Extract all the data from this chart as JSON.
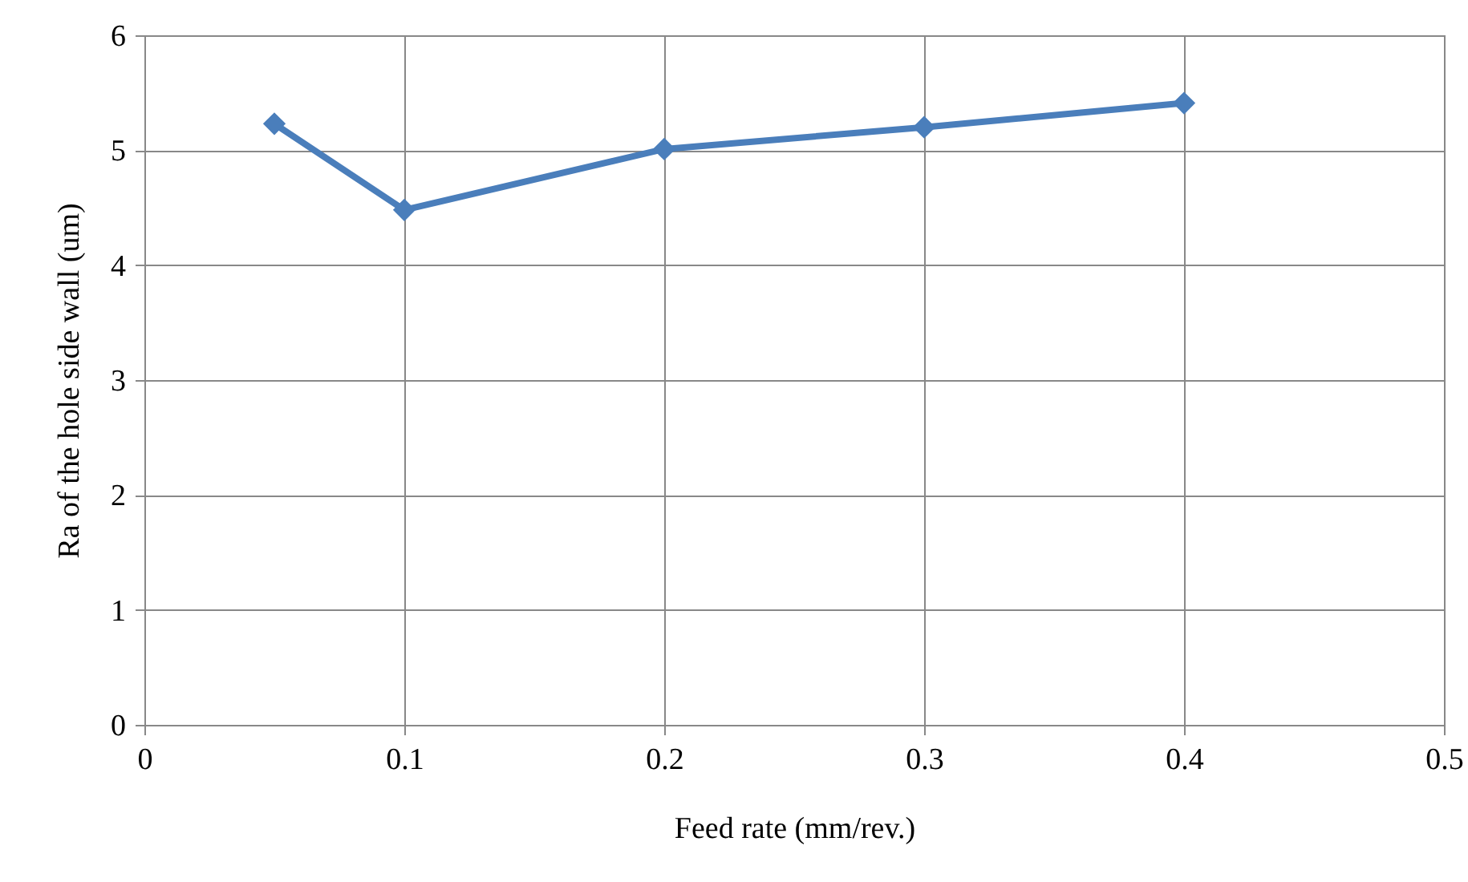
{
  "chart_data": {
    "type": "line",
    "xlabel": "Feed rate (mm/rev.)",
    "ylabel": "Ra of the hole side wall (um)",
    "x": [
      0.05,
      0.1,
      0.2,
      0.3,
      0.4
    ],
    "series": [
      {
        "color": "#4a7ebb",
        "values": [
          5.23,
          4.48,
          5.01,
          5.2,
          5.41
        ]
      }
    ],
    "xlim": [
      0,
      0.5
    ],
    "xticks": [
      0,
      0.1,
      0.2,
      0.3,
      0.4,
      0.5
    ],
    "ylim": [
      0,
      6
    ],
    "yticks": [
      0,
      1,
      2,
      3,
      4,
      5,
      6
    ],
    "grid": true,
    "marker": "diamond"
  }
}
